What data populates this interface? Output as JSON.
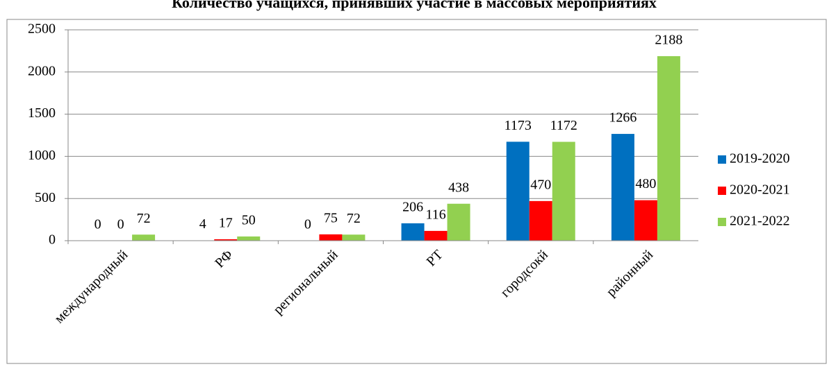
{
  "chart_data": {
    "type": "bar",
    "title": "Количество учащихся, принявших участие в массовых мероприятиях",
    "categories": [
      "международный",
      "РФ",
      "региональный",
      "РТ",
      "городсокй",
      "районный"
    ],
    "series": [
      {
        "name": "2019-2020",
        "color": "#0070c0",
        "values": [
          0,
          4,
          0,
          206,
          1173,
          1266
        ]
      },
      {
        "name": "2020-2021",
        "color": "#ff0000",
        "values": [
          0,
          17,
          75,
          116,
          470,
          480
        ]
      },
      {
        "name": "2021-2022",
        "color": "#92d050",
        "values": [
          72,
          50,
          72,
          438,
          1172,
          2188
        ]
      }
    ],
    "ylim": [
      0,
      2500
    ],
    "yticks": [
      0,
      500,
      1000,
      1500,
      2000,
      2500
    ],
    "grid": true,
    "legend": "right"
  }
}
